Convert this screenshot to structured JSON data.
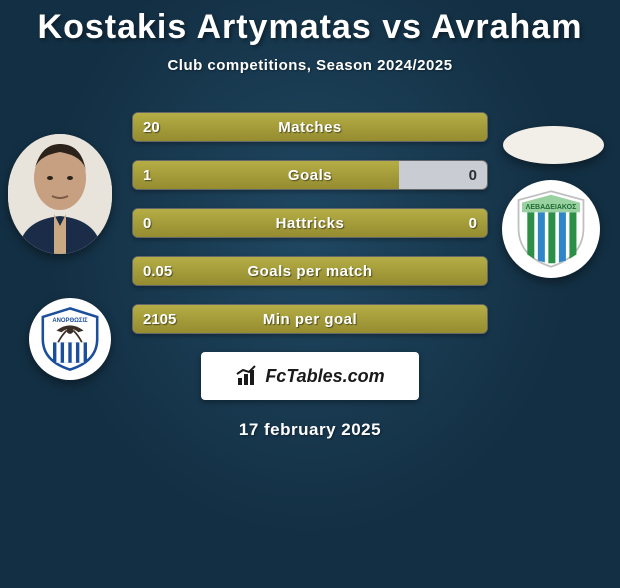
{
  "title": "Kostakis Artymatas vs Avraham",
  "subtitle": "Club competitions, Season 2024/2025",
  "date": "17 february 2025",
  "brand": "FcTables.com",
  "colors": {
    "bar_fill": "#a9a13a",
    "bar_bg": "#c9cdd3",
    "page_bg": "#132f43",
    "badge_right_top": "#9ad1a0",
    "badge_right_stripe1": "#2c8f46",
    "badge_right_stripe2": "#2e86c9",
    "badge_left_stripe": "#1c4f9b",
    "badge_left_eagle": "#3a2e26"
  },
  "bars": [
    {
      "label": "Matches",
      "left": "20",
      "right": "",
      "fill_pct": 100,
      "right_on_fill": true
    },
    {
      "label": "Goals",
      "left": "1",
      "right": "0",
      "fill_pct": 75,
      "right_on_fill": false
    },
    {
      "label": "Hattricks",
      "left": "0",
      "right": "0",
      "fill_pct": 100,
      "right_on_fill": true
    },
    {
      "label": "Goals per match",
      "left": "0.05",
      "right": "",
      "fill_pct": 100,
      "right_on_fill": true
    },
    {
      "label": "Min per goal",
      "left": "2105",
      "right": "",
      "fill_pct": 100,
      "right_on_fill": true
    }
  ]
}
